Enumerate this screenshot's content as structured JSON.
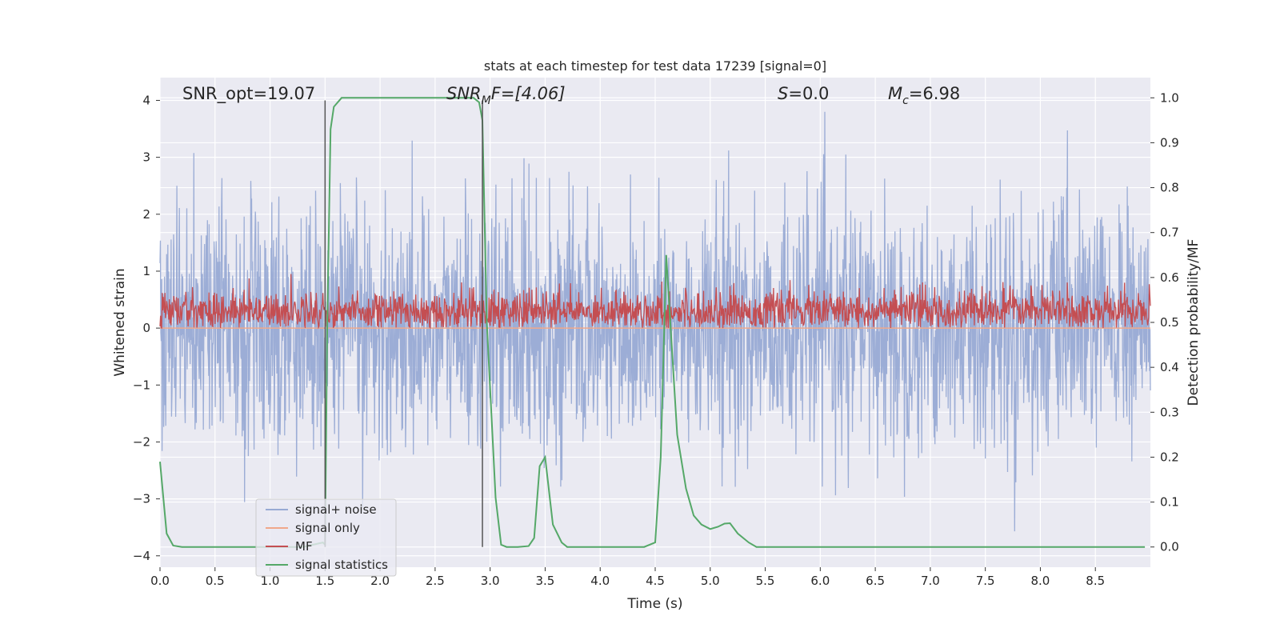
{
  "chart_data": {
    "type": "line",
    "title": "stats at each timestep for test data 17239 [signal=0]",
    "xlabel": "Time (s)",
    "ylabel": "Whitened strain",
    "ylabel_right": "Detection probability/MF",
    "xlim": [
      0,
      9.0
    ],
    "ylim": [
      -4.2,
      4.4
    ],
    "ylim_right": [
      -0.045,
      1.045
    ],
    "grid": true,
    "legend_position": "lower-left",
    "xticks": [
      "0.0",
      "0.5",
      "1.0",
      "1.5",
      "2.0",
      "2.5",
      "3.0",
      "3.5",
      "4.0",
      "4.5",
      "5.0",
      "5.5",
      "6.0",
      "6.5",
      "7.0",
      "7.5",
      "8.0",
      "8.5"
    ],
    "xtick_values": [
      0,
      0.5,
      1.0,
      1.5,
      2.0,
      2.5,
      3.0,
      3.5,
      4.0,
      4.5,
      5.0,
      5.5,
      6.0,
      6.5,
      7.0,
      7.5,
      8.0,
      8.5
    ],
    "yticks_left": [
      "4",
      "3",
      "2",
      "1",
      "0",
      "−1",
      "−2",
      "−3",
      "−4"
    ],
    "ytick_values_left": [
      4,
      3,
      2,
      1,
      0,
      -1,
      -2,
      -3,
      -4
    ],
    "yticks_right": [
      "1.0",
      "0.9",
      "0.8",
      "0.7",
      "0.6",
      "0.5",
      "0.4",
      "0.3",
      "0.2",
      "0.1",
      "0.0"
    ],
    "ytick_values_right": [
      1.0,
      0.9,
      0.8,
      0.7,
      0.6,
      0.5,
      0.4,
      0.3,
      0.2,
      0.1,
      0.0
    ],
    "annotations": {
      "snr_opt": "SNR_opt=19.07",
      "snr_mf_main": "SNR",
      "snr_mf_sub": "M",
      "snr_mf_rest": "F=[4.06]",
      "s_var": "S",
      "s_rest": "=0.0",
      "mc_main": "M",
      "mc_sub": "c",
      "mc_rest": "=6.98"
    },
    "vertical_lines_x": [
      1.5,
      2.93
    ],
    "series": [
      {
        "name": "signal+ noise",
        "color": "#98aad4",
        "description_values": {
          "mean": 0,
          "std": 1.0,
          "typical_range": [
            -3.6,
            3.8
          ]
        }
      },
      {
        "name": "signal only",
        "color": "#f0a88a",
        "values_constant": 0
      },
      {
        "name": "MF",
        "color": "#c44e52",
        "description_values": {
          "baseline": 0.3,
          "typical_range": [
            0,
            0.95
          ]
        }
      },
      {
        "name": "signal statistics",
        "color": "#55a868",
        "x": [
          0.0,
          0.06,
          0.12,
          0.2,
          0.3,
          1.3,
          1.48,
          1.5,
          1.52,
          1.55,
          1.58,
          1.65,
          2.5,
          2.85,
          2.9,
          2.93,
          2.97,
          3.05,
          3.1,
          3.15,
          3.25,
          3.35,
          3.4,
          3.45,
          3.5,
          3.57,
          3.65,
          3.7,
          4.4,
          4.5,
          4.55,
          4.6,
          4.65,
          4.7,
          4.78,
          4.85,
          4.92,
          5.0,
          5.07,
          5.13,
          5.18,
          5.25,
          5.35,
          5.42,
          8.95
        ],
        "y": [
          0.19,
          0.03,
          0.003,
          0.0,
          0.0,
          0.0,
          0.01,
          0.005,
          0.5,
          0.93,
          0.98,
          1.0,
          1.0,
          1.0,
          0.99,
          0.95,
          0.5,
          0.11,
          0.005,
          0.0,
          0.0,
          0.002,
          0.02,
          0.18,
          0.2,
          0.05,
          0.01,
          0.0,
          0.0,
          0.01,
          0.2,
          0.65,
          0.45,
          0.25,
          0.13,
          0.07,
          0.05,
          0.04,
          0.045,
          0.052,
          0.053,
          0.03,
          0.01,
          0.0,
          0.0
        ]
      }
    ]
  }
}
